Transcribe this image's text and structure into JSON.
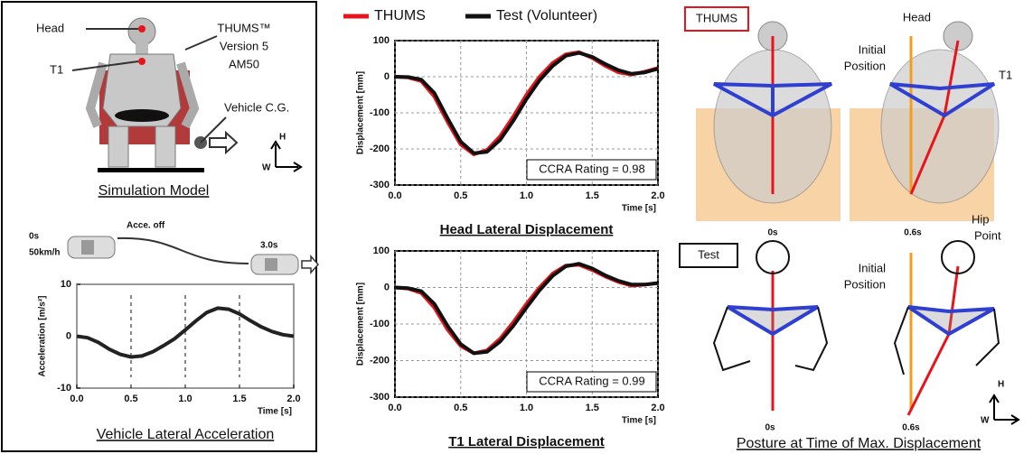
{
  "figure": {
    "model": {
      "head": "Head",
      "t1": "T1",
      "thums": [
        "THUMS™",
        "Version 5",
        "AM50"
      ],
      "vehicle_cg": "Vehicle C.G.",
      "axis_h": "H",
      "axis_w": "W",
      "caption": "Simulation Model"
    },
    "maneuver": {
      "start_time": "0s",
      "start_speed": "50km/h",
      "accel_off": "Acce. off",
      "end_time": "3.0s"
    },
    "posture": {
      "thums_tag": "THUMS",
      "test_tag": "Test",
      "head": "Head",
      "initial_position": [
        "Initial",
        "Position"
      ],
      "t1": "T1",
      "hip_point": [
        "Hip",
        "Point"
      ],
      "time_start": "0s",
      "time_max": "0.6s",
      "axis_h": "H",
      "axis_w": "W",
      "caption": "Posture at Time of Max. Displacement"
    }
  },
  "chart_data": [
    {
      "type": "line",
      "title": "Vehicle Lateral Acceleration",
      "x_label": "Time [s]",
      "y_label": "Acceleration [m/s²]",
      "x": [
        0,
        0.1,
        0.2,
        0.3,
        0.4,
        0.5,
        0.6,
        0.7,
        0.8,
        0.9,
        1.0,
        1.1,
        1.2,
        1.3,
        1.4,
        1.5,
        1.6,
        1.7,
        1.8,
        1.9,
        2.0
      ],
      "values": [
        0,
        -0.3,
        -1.2,
        -2.5,
        -3.5,
        -4,
        -3.8,
        -3,
        -1.8,
        -0.5,
        1.2,
        3,
        4.6,
        5.4,
        5.2,
        4.3,
        3,
        1.8,
        0.9,
        0.3,
        0
      ],
      "color": "#222",
      "vlines": [
        0.5,
        1.0,
        1.5
      ],
      "xlim": [
        0,
        2
      ],
      "xticks": [
        {
          "value": 0,
          "label": "0.0"
        },
        0.5,
        {
          "value": 1,
          "label": "1.0"
        },
        1.5,
        {
          "value": 2,
          "label": "2.0"
        }
      ],
      "ylim": [
        -10,
        10
      ],
      "yticks": [
        -10,
        0,
        10
      ],
      "grid": false
    },
    {
      "type": "line",
      "title": "Head Lateral Displacement",
      "x_label": "Time [s]",
      "y_label": "Displacement [mm]",
      "annotation": "CCRA Rating = 0.98",
      "x": [
        0,
        0.1,
        0.2,
        0.3,
        0.4,
        0.5,
        0.6,
        0.7,
        0.8,
        0.9,
        1.0,
        1.1,
        1.2,
        1.3,
        1.4,
        1.5,
        1.6,
        1.7,
        1.8,
        1.9,
        2.0
      ],
      "series": [
        {
          "name": "THUMS",
          "color": "#e8141c",
          "values": [
            0,
            -2,
            -12,
            -55,
            -125,
            -188,
            -215,
            -203,
            -165,
            -110,
            -50,
            0,
            38,
            62,
            68,
            52,
            30,
            12,
            6,
            14,
            24
          ]
        },
        {
          "name": "Test (Volunteer)",
          "color": "#111111",
          "values": [
            0,
            -1,
            -8,
            -45,
            -115,
            -180,
            -212,
            -208,
            -175,
            -122,
            -62,
            -10,
            30,
            58,
            66,
            55,
            35,
            18,
            8,
            12,
            22
          ]
        }
      ],
      "xlim": [
        0,
        2
      ],
      "xticks": [
        {
          "value": 0,
          "label": "0.0"
        },
        0.5,
        {
          "value": 1,
          "label": "1.0"
        },
        1.5,
        {
          "value": 2,
          "label": "2.0"
        }
      ],
      "ylim": [
        -300,
        100
      ],
      "yticks": [
        -300,
        -200,
        -100,
        0,
        100
      ],
      "grid": true
    },
    {
      "type": "line",
      "title": "T1 Lateral Displacement",
      "x_label": "Time [s]",
      "y_label": "Displacement [mm]",
      "annotation": "CCRA Rating = 0.99",
      "x": [
        0,
        0.1,
        0.2,
        0.3,
        0.4,
        0.5,
        0.6,
        0.7,
        0.8,
        0.9,
        1.0,
        1.1,
        1.2,
        1.3,
        1.4,
        1.5,
        1.6,
        1.7,
        1.8,
        1.9,
        2.0
      ],
      "series": [
        {
          "name": "THUMS",
          "color": "#e8141c",
          "values": [
            0,
            -3,
            -15,
            -55,
            -115,
            -160,
            -180,
            -172,
            -140,
            -95,
            -45,
            0,
            38,
            60,
            62,
            48,
            30,
            15,
            5,
            8,
            12
          ]
        },
        {
          "name": "Test (Volunteer)",
          "color": "#111111",
          "values": [
            0,
            -2,
            -10,
            -45,
            -105,
            -155,
            -180,
            -176,
            -148,
            -105,
            -55,
            -8,
            32,
            58,
            65,
            52,
            33,
            18,
            8,
            8,
            12
          ]
        }
      ],
      "xlim": [
        0,
        2
      ],
      "xticks": [
        {
          "value": 0,
          "label": "0.0"
        },
        0.5,
        {
          "value": 1,
          "label": "1.0"
        },
        1.5,
        {
          "value": 2,
          "label": "2.0"
        }
      ],
      "ylim": [
        -300,
        100
      ],
      "yticks": [
        -300,
        -200,
        -100,
        0,
        100
      ],
      "grid": true
    }
  ]
}
